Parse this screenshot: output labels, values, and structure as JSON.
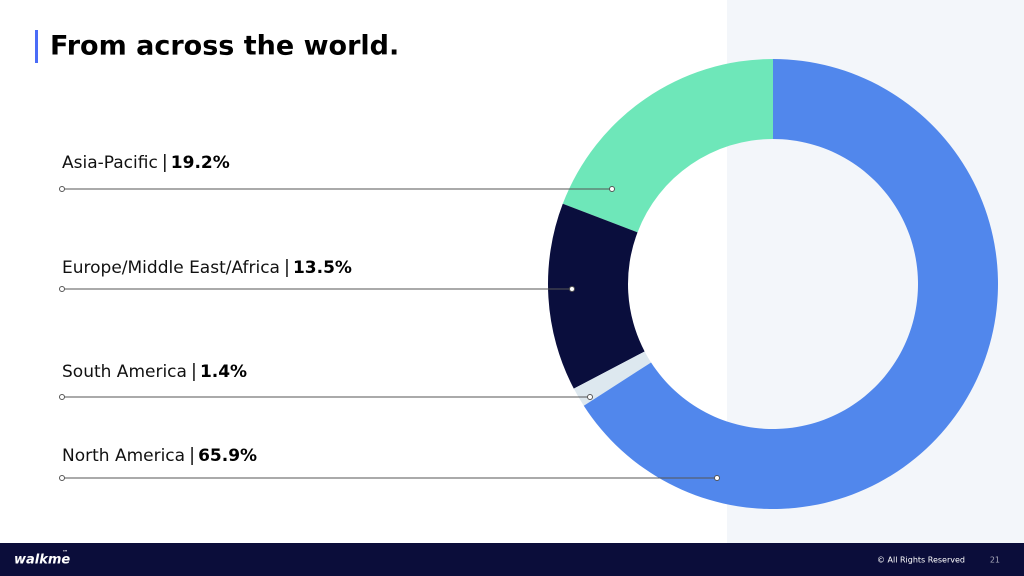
{
  "chart_data": {
    "type": "pie",
    "donut": true,
    "title": "From across the world.",
    "categories": [
      "Asia-Pacific",
      "Europe/Middle East/Africa",
      "South America",
      "North America"
    ],
    "values": [
      19.2,
      13.5,
      1.4,
      65.9
    ],
    "value_labels": [
      "19.2%",
      "13.5%",
      "1.4%",
      "65.9%"
    ],
    "colors": [
      "#6ee7b9",
      "#0a0e3d",
      "#dde8ef",
      "#5187ec"
    ]
  },
  "footer": {
    "logo": "walkme",
    "trademark": "™",
    "copyright": "© All Rights Reserved",
    "page_number": "21"
  }
}
